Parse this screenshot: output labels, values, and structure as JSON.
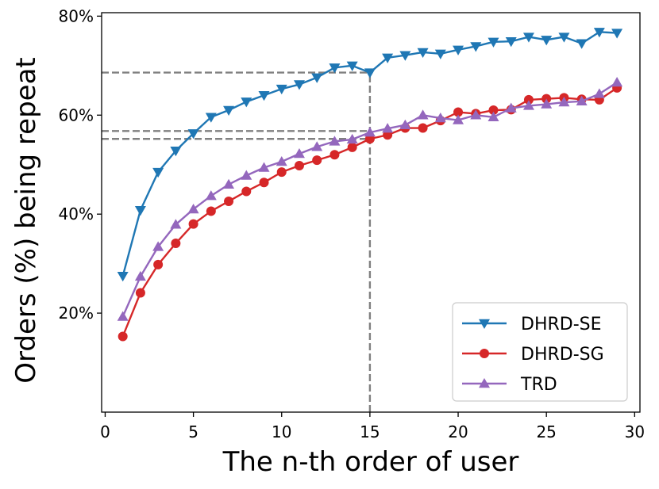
{
  "chart_data": {
    "type": "line",
    "title": "",
    "xlabel": "The n-th order of user",
    "ylabel": "Orders (%) being repeat",
    "xlim": [
      -0.2,
      30.3
    ],
    "ylim": [
      0,
      80.7
    ],
    "xticks": [
      0,
      5,
      10,
      15,
      20,
      25,
      30
    ],
    "xtick_labels": [
      "0",
      "5",
      "10",
      "15",
      "20",
      "25",
      "30"
    ],
    "yticks": [
      20,
      40,
      60,
      80
    ],
    "ytick_labels": [
      "20%",
      "40%",
      "60%",
      "80%"
    ],
    "grid": false,
    "legend_position": "lower-right",
    "x": [
      1,
      2,
      3,
      4,
      5,
      6,
      7,
      8,
      9,
      10,
      11,
      12,
      13,
      14,
      15,
      16,
      17,
      18,
      19,
      20,
      21,
      22,
      23,
      24,
      25,
      26,
      27,
      28,
      29
    ],
    "series": [
      {
        "name": "DHRD-SE",
        "color": "#1f77b4",
        "marker": "triangle-down",
        "values": [
          27.5,
          40.8,
          48.5,
          52.8,
          56.3,
          59.6,
          61.0,
          62.7,
          64.0,
          65.3,
          66.2,
          67.6,
          69.6,
          70.0,
          68.6,
          71.6,
          72.1,
          72.7,
          72.4,
          73.2,
          73.9,
          74.8,
          74.9,
          75.8,
          75.2,
          75.8,
          74.5,
          76.8,
          76.6
        ]
      },
      {
        "name": "DHRD-SG",
        "color": "#d62728",
        "marker": "circle",
        "values": [
          15.3,
          24.1,
          29.8,
          34.1,
          38.0,
          40.6,
          42.6,
          44.6,
          46.4,
          48.5,
          49.8,
          50.9,
          52.0,
          53.5,
          55.2,
          56.0,
          57.4,
          57.4,
          58.9,
          60.6,
          60.3,
          61.0,
          61.1,
          63.1,
          63.3,
          63.5,
          63.2,
          63.1,
          65.5
        ]
      },
      {
        "name": "TRD",
        "color": "#9467bd",
        "marker": "triangle-up",
        "values": [
          19.3,
          27.4,
          33.4,
          37.9,
          41.0,
          43.7,
          46.0,
          47.8,
          49.4,
          50.6,
          52.2,
          53.6,
          54.7,
          55.1,
          56.5,
          57.3,
          58.0,
          60.0,
          59.4,
          59.0,
          60.0,
          59.6,
          61.4,
          61.9,
          62.2,
          62.6,
          62.8,
          64.3,
          66.6
        ]
      }
    ],
    "reference_lines": [
      {
        "kind": "vertical",
        "x": 15,
        "to_y": 68.6
      },
      {
        "kind": "horizontal",
        "y": 68.6,
        "to_x": 15
      },
      {
        "kind": "horizontal",
        "y": 56.8,
        "to_x": 15
      },
      {
        "kind": "horizontal",
        "y": 55.2,
        "to_x": 15
      }
    ]
  }
}
